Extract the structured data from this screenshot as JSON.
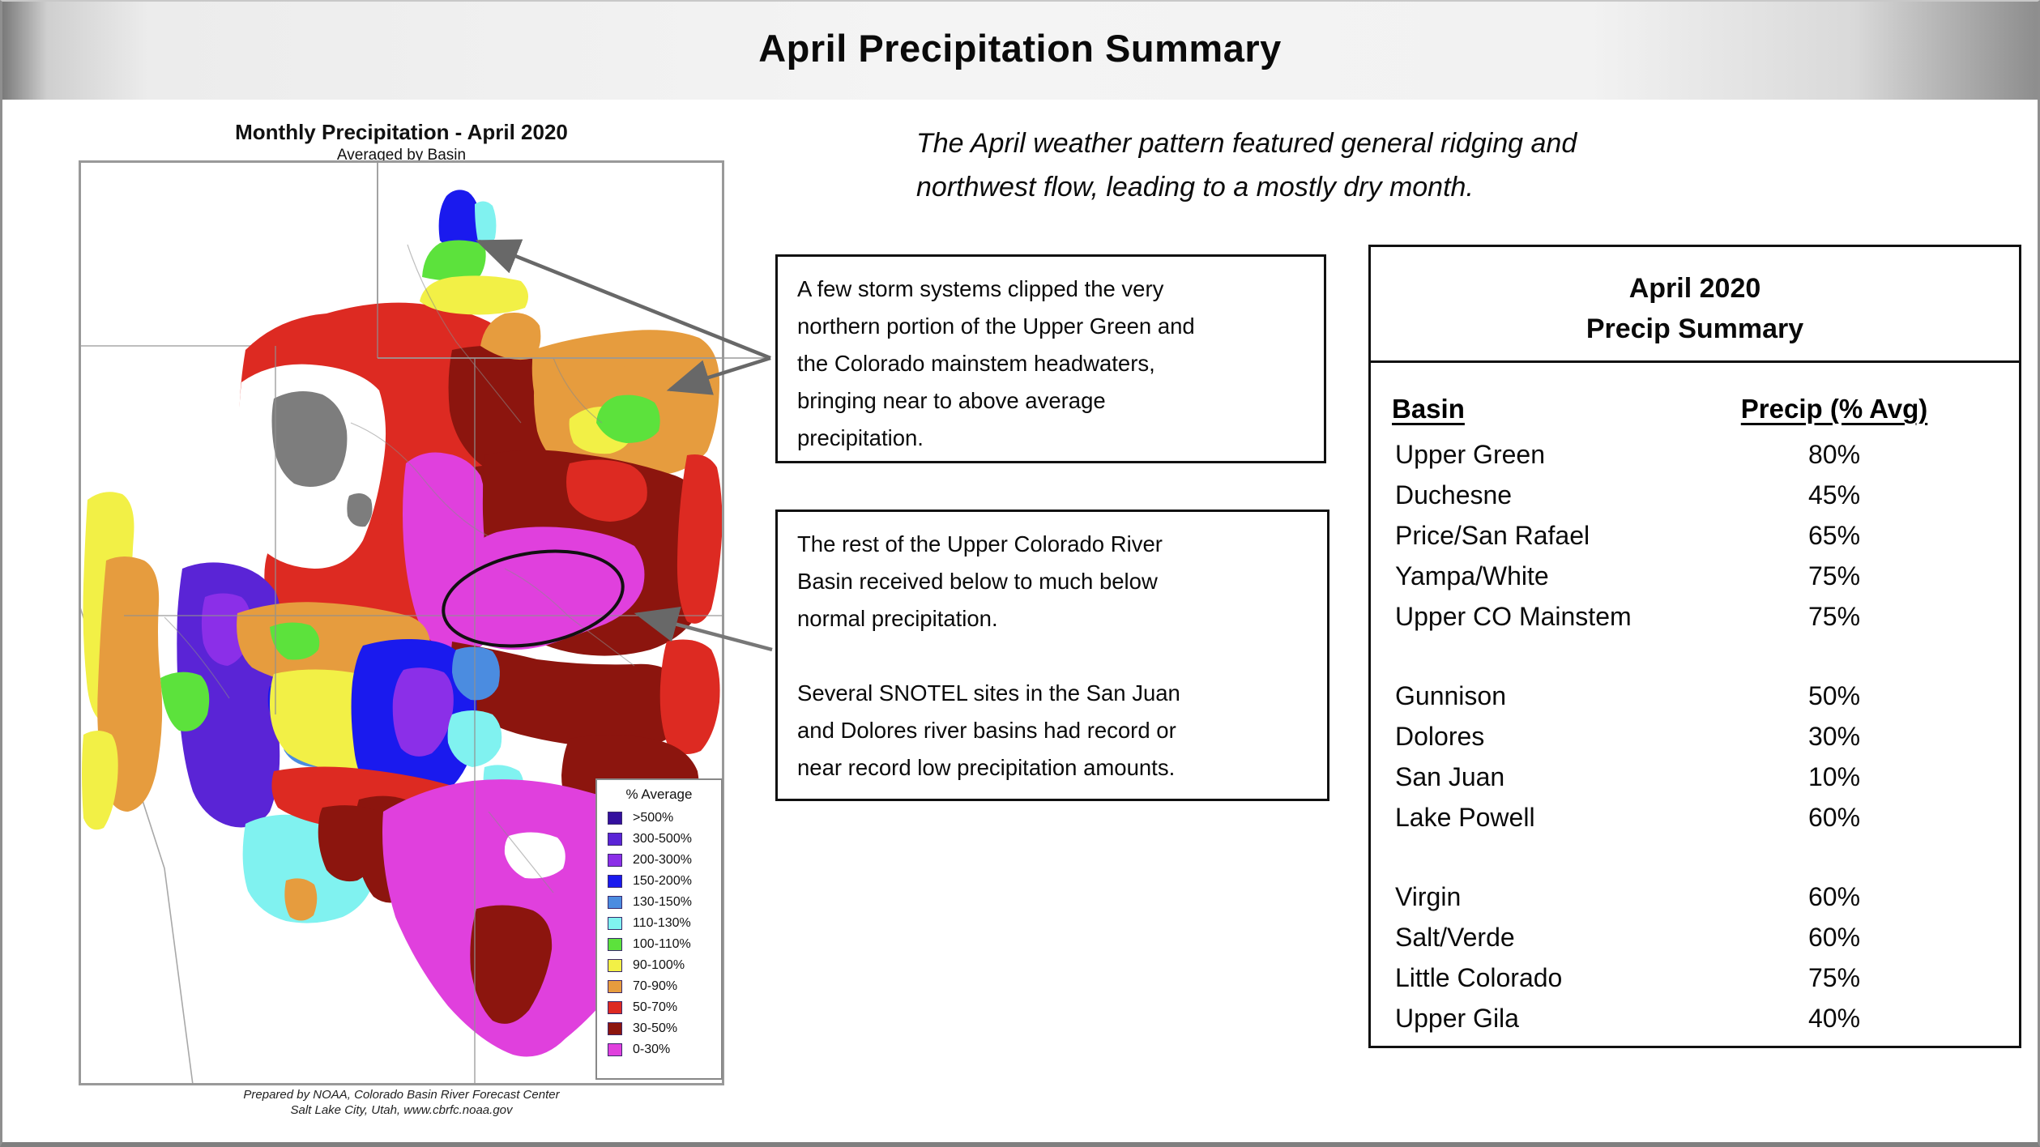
{
  "slide": {
    "title": "April Precipitation Summary"
  },
  "intro": {
    "line1": "The April weather pattern featured general ridging and",
    "line2": "northwest flow, leading to a mostly dry month."
  },
  "map": {
    "title": "Monthly Precipitation - April 2020",
    "subtitle": "Averaged by Basin",
    "attribution1": "Prepared by NOAA, Colorado Basin River Forecast Center",
    "attribution2": "Salt Lake City, Utah, www.cbrfc.noaa.gov",
    "legend_title": "% Average",
    "legend": [
      {
        "label": ">500%",
        "color": "#33109e"
      },
      {
        "label": "300-500%",
        "color": "#5a24d6"
      },
      {
        "label": "200-300%",
        "color": "#8b2fe8"
      },
      {
        "label": "150-200%",
        "color": "#1a1aee"
      },
      {
        "label": "130-150%",
        "color": "#4b8ce0"
      },
      {
        "label": "110-130%",
        "color": "#80f2f0"
      },
      {
        "label": "100-110%",
        "color": "#5ce23c"
      },
      {
        "label": "90-100%",
        "color": "#f2f046"
      },
      {
        "label": "70-90%",
        "color": "#e69c3e"
      },
      {
        "label": "50-70%",
        "color": "#dd2a22"
      },
      {
        "label": "30-50%",
        "color": "#8c150e"
      },
      {
        "label": "0-30%",
        "color": "#e040dd"
      }
    ]
  },
  "callout1": {
    "lines": [
      "A few storm systems clipped the very",
      "northern portion of the Upper Green and",
      "the Colorado mainstem headwaters,",
      "bringing near to above average",
      "precipitation."
    ]
  },
  "callout2": {
    "lines": [
      "The rest of the Upper Colorado River",
      "Basin received below to much below",
      "normal precipitation.",
      "",
      "Several SNOTEL sites in the San Juan",
      "and Dolores river basins had record or",
      "near record low precipitation amounts."
    ]
  },
  "table": {
    "title1": "April 2020",
    "title2": "Precip Summary",
    "col_basin": "Basin",
    "col_precip": "Precip (% Avg)",
    "groups": [
      [
        [
          "Upper Green",
          "80%"
        ],
        [
          "Duchesne",
          "45%"
        ],
        [
          "Price/San Rafael",
          "65%"
        ],
        [
          "Yampa/White",
          "75%"
        ],
        [
          "Upper CO Mainstem",
          "75%"
        ]
      ],
      [
        [
          "Gunnison",
          "50%"
        ],
        [
          "Dolores",
          "30%"
        ],
        [
          "San Juan",
          "10%"
        ],
        [
          "Lake Powell",
          "60%"
        ]
      ],
      [
        [
          "Virgin",
          "60%"
        ],
        [
          "Salt/Verde",
          "60%"
        ],
        [
          "Little Colorado",
          "75%"
        ],
        [
          "Upper Gila",
          "40%"
        ]
      ]
    ]
  },
  "annotation_colors": {
    "arrow": "#686868",
    "ellipse": "#111111",
    "state_line": "#a8a8a8"
  }
}
